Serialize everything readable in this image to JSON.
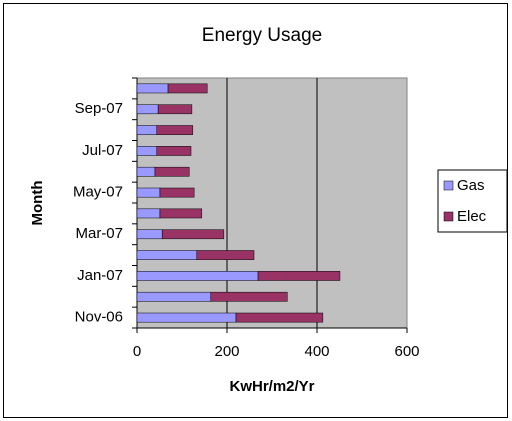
{
  "chart_data": {
    "type": "bar",
    "orientation": "horizontal",
    "stacked": true,
    "title": "Energy Usage",
    "x_label": "KwHr/m2/Yr",
    "y_label": "Month",
    "categories": [
      "Nov-06",
      null,
      "Jan-07",
      null,
      "Mar-07",
      null,
      "May-07",
      null,
      "Jul-07",
      null,
      "Sep-07",
      null
    ],
    "series": [
      {
        "name": "Gas",
        "color": "#9999ff",
        "values": [
          220,
          164,
          269,
          133,
          56,
          51,
          51,
          40,
          44,
          44,
          47,
          69
        ]
      },
      {
        "name": "Elec",
        "color": "#993366",
        "values": [
          193,
          170,
          182,
          127,
          137,
          93,
          76,
          76,
          76,
          80,
          75,
          87
        ]
      }
    ],
    "xlim": [
      0,
      600
    ],
    "xticks": [
      0,
      200,
      400,
      600
    ],
    "grid": true,
    "legend": "right"
  }
}
